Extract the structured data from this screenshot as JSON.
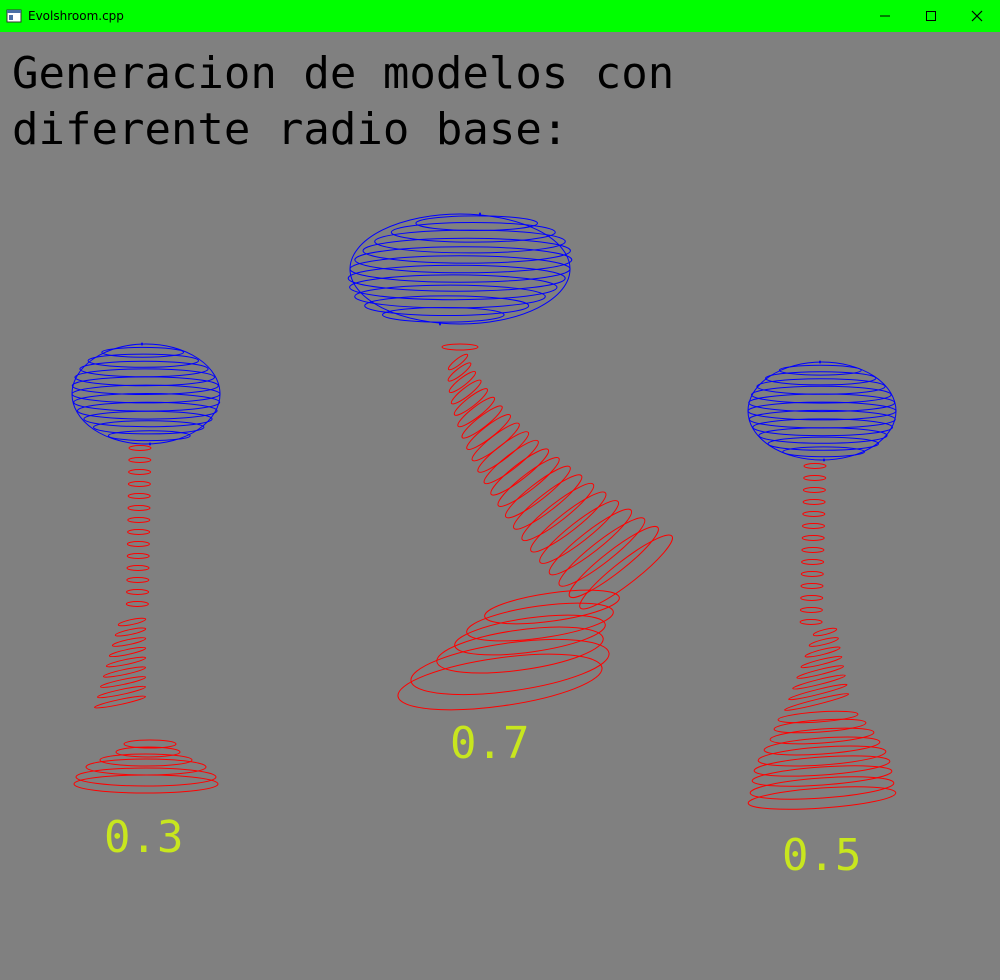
{
  "window": {
    "title": "Evolshroom.cpp",
    "titlebar_color": "#00ff00",
    "controls": [
      "minimize",
      "maximize",
      "close"
    ]
  },
  "canvas": {
    "background": "#808080",
    "heading_line1": "Generacion de modelos con",
    "heading_line2": "diferente radio base:"
  },
  "models": [
    {
      "name": "model-left",
      "label": "0.3"
    },
    {
      "name": "model-center",
      "label": "0.7"
    },
    {
      "name": "model-right",
      "label": "0.5"
    }
  ],
  "colors": {
    "cap": "#0000ff",
    "stem": "#ff0000",
    "label": "#c8e61e",
    "heading": "#000000"
  }
}
